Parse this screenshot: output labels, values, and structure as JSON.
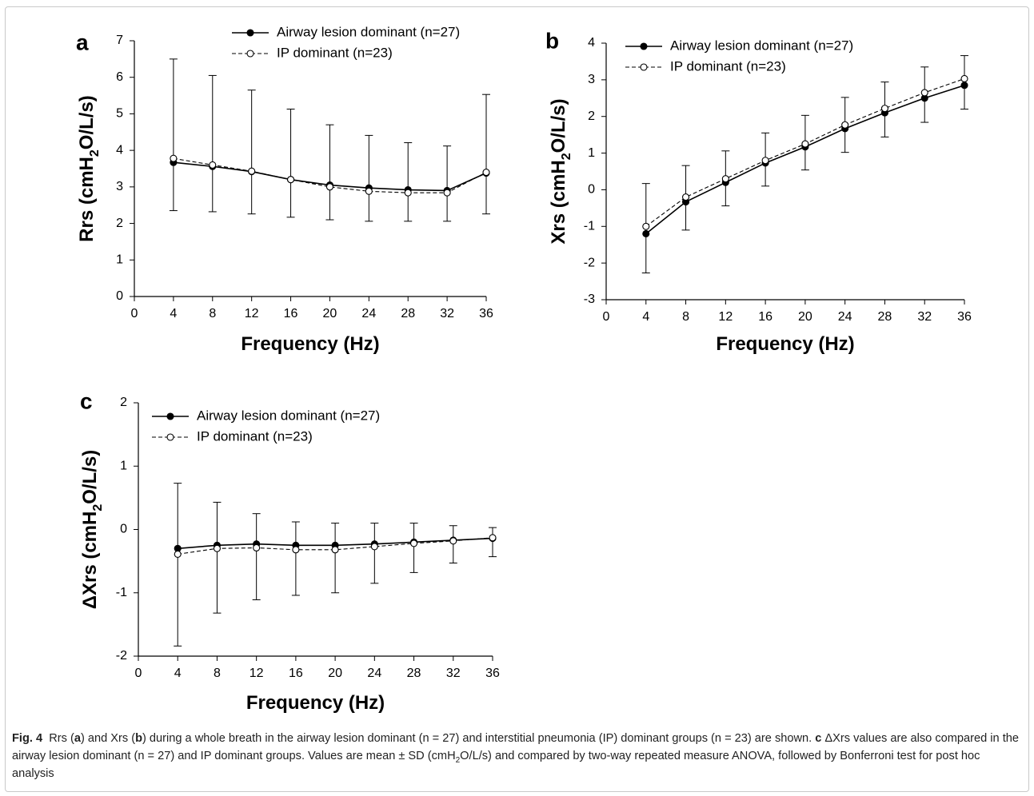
{
  "caption": {
    "label": "Fig. 4",
    "parts": [
      {
        "text": "Rrs (",
        "bold": false
      },
      {
        "text": "a",
        "bold": true
      },
      {
        "text": ") and Xrs (",
        "bold": false
      },
      {
        "text": "b",
        "bold": true
      },
      {
        "text": ") during a whole breath in the airway lesion dominant (n = 27) and interstitial pneumonia (IP) dominant groups (n = 23) are shown. ",
        "bold": false
      },
      {
        "text": "c",
        "bold": true
      },
      {
        "text": " ΔXrs values are also compared in the airway lesion dominant (n = 27) and IP dominant groups. Values are mean ± SD (cmH",
        "bold": false
      },
      {
        "text": "2",
        "sub": true
      },
      {
        "text": "O/L/s) and compared by two-way repeated measure ANOVA, followed by Bonferroni test for post hoc analysis",
        "bold": false
      }
    ]
  },
  "chart_data": [
    {
      "panel": "a",
      "type": "line",
      "xlabel": "Frequency (Hz)",
      "ylabel": "Rrs (cmH2O/L/s)",
      "ylabel_parts": [
        "Rrs (cmH",
        "2",
        "O/L/s)"
      ],
      "xlim": [
        0,
        36
      ],
      "ylim": [
        0,
        7
      ],
      "xticks": [
        0,
        4,
        8,
        12,
        16,
        20,
        24,
        28,
        32,
        36
      ],
      "yticks": [
        0,
        1,
        2,
        3,
        4,
        5,
        6,
        7
      ],
      "legend_position": "top-right",
      "x": [
        4,
        8,
        12,
        16,
        20,
        24,
        28,
        32,
        36
      ],
      "series": [
        {
          "name": "Airway lesion dominant (n=27)",
          "marker": "filled-circle",
          "line": "solid",
          "values": [
            3.67,
            3.56,
            3.42,
            3.2,
            3.05,
            2.97,
            2.92,
            2.9,
            3.38
          ],
          "err_upper": [
            6.5,
            6.05,
            5.65,
            5.13,
            4.7,
            4.41,
            4.21,
            4.12,
            5.53
          ]
        },
        {
          "name": "IP dominant (n=23)",
          "marker": "open-circle",
          "line": "dashed",
          "values": [
            3.78,
            3.6,
            3.43,
            3.2,
            3.0,
            2.88,
            2.84,
            2.84,
            3.4
          ],
          "err_lower": [
            2.35,
            2.32,
            2.26,
            2.17,
            2.1,
            2.06,
            2.06,
            2.06,
            2.26
          ]
        }
      ]
    },
    {
      "panel": "b",
      "type": "line",
      "xlabel": "Frequency (Hz)",
      "ylabel": "Xrs (cmH2O/L/s)",
      "ylabel_parts": [
        "Xrs (cmH",
        "2",
        "O/L/s)"
      ],
      "xlim": [
        0,
        36
      ],
      "ylim": [
        -3,
        4
      ],
      "xticks": [
        0,
        4,
        8,
        12,
        16,
        20,
        24,
        28,
        32,
        36
      ],
      "yticks": [
        -3,
        -2,
        -1,
        0,
        1,
        2,
        3,
        4
      ],
      "legend_position": "top-left",
      "x": [
        4,
        8,
        12,
        16,
        20,
        24,
        28,
        32,
        36
      ],
      "series": [
        {
          "name": "Airway lesion dominant (n=27)",
          "marker": "filled-circle",
          "line": "solid",
          "values": [
            -1.2,
            -0.33,
            0.2,
            0.73,
            1.17,
            1.67,
            2.1,
            2.5,
            2.85
          ],
          "err_lower": [
            -2.27,
            -1.1,
            -0.44,
            0.1,
            0.54,
            1.02,
            1.44,
            1.84,
            2.2
          ]
        },
        {
          "name": "IP dominant (n=23)",
          "marker": "open-circle",
          "line": "dashed",
          "values": [
            -1.0,
            -0.2,
            0.3,
            0.8,
            1.25,
            1.77,
            2.22,
            2.65,
            3.03
          ],
          "err_upper": [
            0.17,
            0.66,
            1.06,
            1.55,
            2.03,
            2.52,
            2.94,
            3.35,
            3.66
          ]
        }
      ]
    },
    {
      "panel": "c",
      "type": "line",
      "xlabel": "Frequency (Hz)",
      "ylabel": "ΔXrs (cmH2O/L/s)",
      "ylabel_parts": [
        "ΔXrs (cmH",
        "2",
        "O/L/s)"
      ],
      "xlim": [
        0,
        36
      ],
      "ylim": [
        -2,
        2
      ],
      "xticks": [
        0,
        4,
        8,
        12,
        16,
        20,
        24,
        28,
        32,
        36
      ],
      "yticks": [
        -2,
        -1,
        0,
        1,
        2
      ],
      "legend_position": "top-left",
      "x": [
        4,
        8,
        12,
        16,
        20,
        24,
        28,
        32,
        36
      ],
      "series": [
        {
          "name": "Airway lesion dominant (n=27)",
          "marker": "filled-circle",
          "line": "solid",
          "values": [
            -0.3,
            -0.25,
            -0.23,
            -0.25,
            -0.25,
            -0.23,
            -0.2,
            -0.17,
            -0.14
          ],
          "err_upper": [
            0.73,
            0.43,
            0.25,
            0.12,
            0.1,
            0.1,
            0.1,
            0.06,
            0.03
          ]
        },
        {
          "name": "IP dominant (n=23)",
          "marker": "open-circle",
          "line": "dashed",
          "values": [
            -0.39,
            -0.3,
            -0.29,
            -0.32,
            -0.32,
            -0.27,
            -0.22,
            -0.18,
            -0.13
          ],
          "err_lower": [
            -1.84,
            -1.32,
            -1.11,
            -1.04,
            -1.0,
            -0.85,
            -0.68,
            -0.53,
            -0.43
          ]
        }
      ]
    }
  ]
}
